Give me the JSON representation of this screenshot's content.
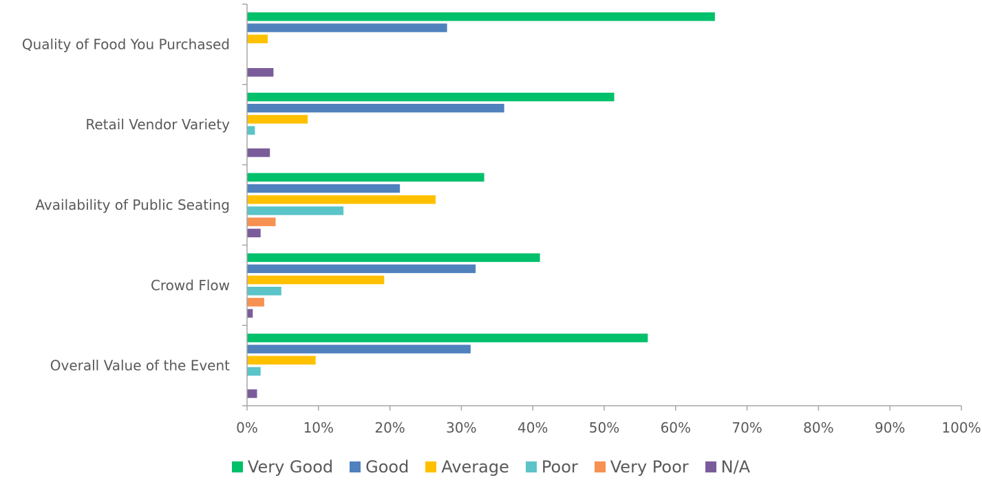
{
  "chart_data": {
    "type": "bar",
    "orientation": "horizontal",
    "categories": [
      "Quality of Food You Purchased",
      "Retail Vendor Variety",
      "Availability of Public Seating",
      "Crowd Flow",
      "Overall Value of the Event"
    ],
    "series": [
      {
        "name": "Very Good",
        "color": "#00C06B",
        "values": [
          65.5,
          51.4,
          33.2,
          41.0,
          56.1
        ]
      },
      {
        "name": "Good",
        "color": "#4F81BD",
        "values": [
          28.0,
          36.0,
          21.4,
          32.0,
          31.3
        ]
      },
      {
        "name": "Average",
        "color": "#FFC000",
        "values": [
          2.9,
          8.5,
          26.4,
          19.2,
          9.6
        ]
      },
      {
        "name": "Poor",
        "color": "#5BC4C8",
        "values": [
          0,
          1.1,
          13.5,
          4.8,
          1.9
        ]
      },
      {
        "name": "Very Poor",
        "color": "#F79151",
        "values": [
          0,
          0,
          4.0,
          2.4,
          0
        ]
      },
      {
        "name": "N/A",
        "color": "#7B5C9B",
        "values": [
          3.7,
          3.2,
          1.9,
          0.8,
          1.4
        ]
      }
    ],
    "xlim": [
      0,
      100
    ],
    "x_ticks": [
      "0%",
      "10%",
      "20%",
      "30%",
      "40%",
      "50%",
      "60%",
      "70%",
      "80%",
      "90%",
      "100%"
    ],
    "title": "",
    "xlabel": "",
    "ylabel": "",
    "grid": false,
    "legend_position": "bottom"
  }
}
